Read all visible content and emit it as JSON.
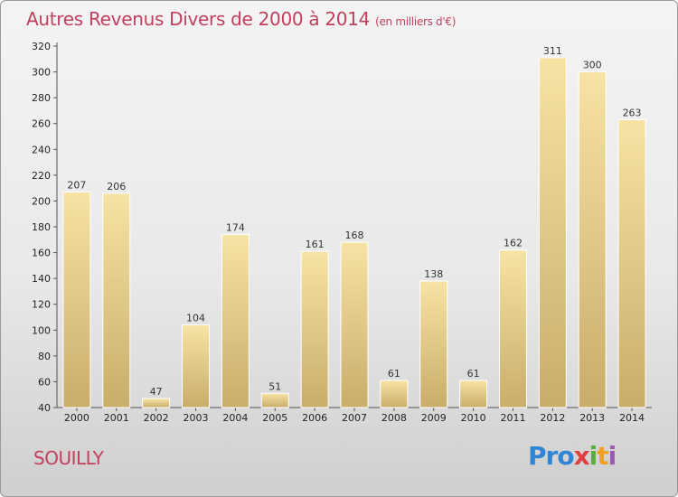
{
  "title": "Autres Revenus Divers de 2000 à 2014",
  "unit": "(en milliers d'€)",
  "location": "SOUILLY",
  "logo": {
    "p1": "Pro",
    "p2": "x",
    "p3": "i",
    "p4": "t",
    "p5": "i"
  },
  "colors": {
    "title": "#c0405e",
    "bar_light": "#f7e3a4",
    "bar_dark": "#c9ad6a"
  },
  "chart_data": {
    "type": "bar",
    "title": "Autres Revenus Divers de 2000 à 2014",
    "subtitle": "(en milliers d'€)",
    "categories": [
      "2000",
      "2001",
      "2002",
      "2003",
      "2004",
      "2005",
      "2006",
      "2007",
      "2008",
      "2009",
      "2010",
      "2011",
      "2012",
      "2013",
      "2014"
    ],
    "values": [
      207,
      206,
      47,
      104,
      174,
      51,
      161,
      168,
      61,
      138,
      61,
      162,
      311,
      300,
      263
    ],
    "ylim": [
      40,
      320
    ],
    "yticks": [
      40,
      60,
      80,
      100,
      120,
      140,
      160,
      180,
      200,
      220,
      240,
      260,
      280,
      300,
      320
    ],
    "grid": false,
    "legend": "none"
  }
}
